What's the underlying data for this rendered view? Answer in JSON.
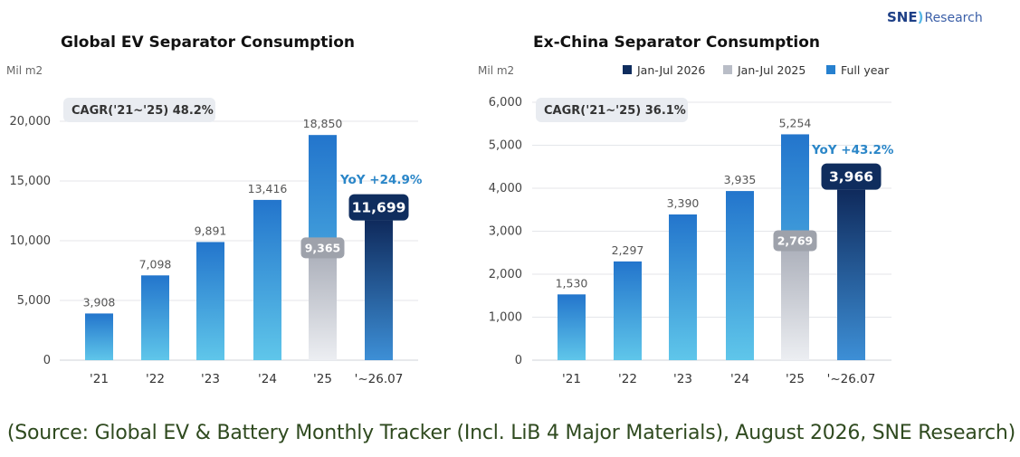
{
  "logo": {
    "brand": "SNE",
    "suffix": "Research"
  },
  "legend": {
    "items": [
      "Jan-Jul 2026",
      "Jan-Jul 2025",
      "Full year"
    ]
  },
  "source": "(Source: Global EV & Battery Monthly Tracker (Incl. LiB 4 Major Materials), August 2026, SNE Research)",
  "colors": {
    "partial_2026": "#0f2d5e",
    "partial_2025": "#b9bdc7",
    "full_year": "#2680cf",
    "yoy": "#2a86c8",
    "grid": "#e4e6ea"
  },
  "chart_data": [
    {
      "type": "bar",
      "title": "Global EV Separator Consumption",
      "ylabel": "Mil m2",
      "ylim": [
        0,
        20000
      ],
      "yticks": [
        0,
        5000,
        10000,
        15000,
        20000
      ],
      "categories": [
        "'21",
        "'22",
        "'23",
        "'24",
        "'25",
        "'~26.07"
      ],
      "series": [
        {
          "name": "Full year",
          "values": [
            3908,
            7098,
            9891,
            13416,
            18850,
            null
          ]
        },
        {
          "name": "Jan-Jul 2025",
          "values": [
            null,
            null,
            null,
            null,
            9365,
            null
          ]
        },
        {
          "name": "Jan-Jul 2026",
          "values": [
            null,
            null,
            null,
            null,
            null,
            11699
          ]
        }
      ],
      "value_labels": [
        "3,908",
        "7,098",
        "9,891",
        "13,416",
        "18,850",
        null
      ],
      "partial_2025_label": "9,365",
      "partial_2026_label": "11,699",
      "cagr": "CAGR('21~'25)  48.2%",
      "yoy": "YoY +24.9%"
    },
    {
      "type": "bar",
      "title": "Ex-China Separator Consumption",
      "ylabel": "Mil m2",
      "ylim": [
        0,
        6000
      ],
      "yticks": [
        0,
        1000,
        2000,
        3000,
        4000,
        5000,
        6000
      ],
      "categories": [
        "'21",
        "'22",
        "'23",
        "'24",
        "'25",
        "'~26.07"
      ],
      "series": [
        {
          "name": "Full year",
          "values": [
            1530,
            2297,
            3390,
            3935,
            5254,
            null
          ]
        },
        {
          "name": "Jan-Jul 2025",
          "values": [
            null,
            null,
            null,
            null,
            2769,
            null
          ]
        },
        {
          "name": "Jan-Jul 2026",
          "values": [
            null,
            null,
            null,
            null,
            null,
            3966
          ]
        }
      ],
      "value_labels": [
        "1,530",
        "2,297",
        "3,390",
        "3,935",
        "5,254",
        null
      ],
      "partial_2025_label": "2,769",
      "partial_2026_label": "3,966",
      "cagr": "CAGR('21~'25)  36.1%",
      "yoy": "YoY +43.2%"
    }
  ]
}
